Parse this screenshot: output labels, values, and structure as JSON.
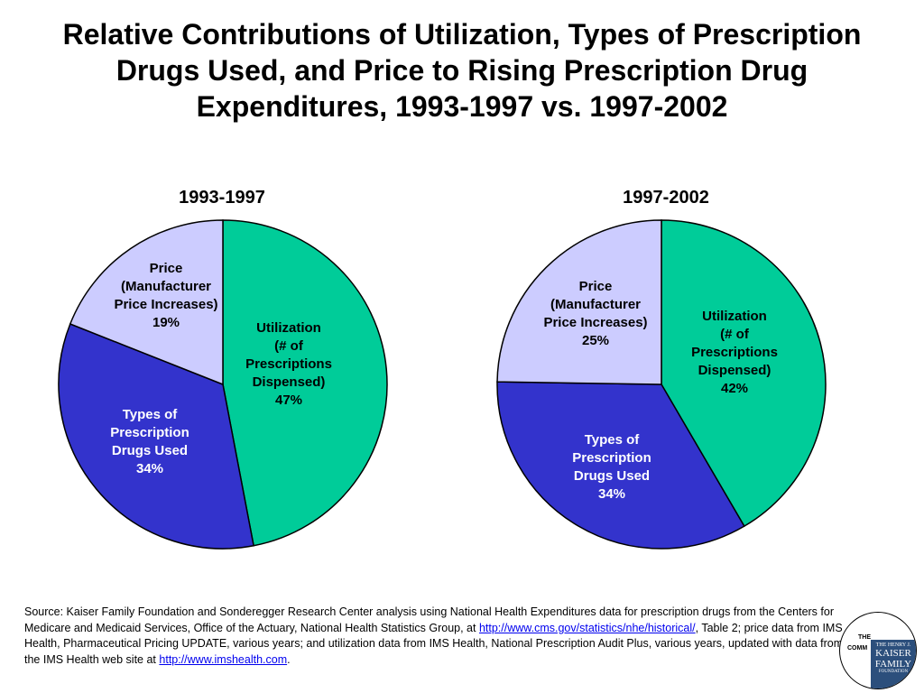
{
  "title": "Relative Contributions of Utilization, Types of Prescription Drugs Used, and Price to Rising Prescription Drug Expenditures, 1993-1997 vs. 1997-2002",
  "colors": {
    "utilization": "#00cc99",
    "types": "#3333cc",
    "price": "#ccccff",
    "border": "#000000"
  },
  "chart_data": [
    {
      "type": "pie",
      "title": "1993-1997",
      "slices": [
        {
          "label": "Utilization\n(# of\nPrescriptions\nDispensed)\n47%",
          "value": 47
        },
        {
          "label": "Types of\nPrescription\nDrugs Used\n34%",
          "value": 34
        },
        {
          "label": "Price\n(Manufacturer\nPrice Increases)\n19%",
          "value": 19
        }
      ]
    },
    {
      "type": "pie",
      "title": "1997-2002",
      "slices": [
        {
          "label": "Utilization\n(# of\nPrescriptions\nDispensed)\n42%",
          "value": 42
        },
        {
          "label": "Types of\nPrescription\nDrugs Used\n34%",
          "value": 34
        },
        {
          "label": "Price\n(Manufacturer\nPrice Increases)\n25%",
          "value": 25
        }
      ]
    }
  ],
  "source": {
    "text1": "Source: Kaiser Family Foundation and Sonderegger Research Center analysis using National Health Expenditures data for prescription drugs from the Centers for Medicare and Medicaid Services, Office of the Actuary, National Health Statistics Group, at ",
    "link1": "http://www.cms.gov/statistics/nhe/historical/",
    "text2": ", Table 2; price data from IMS Health, Pharmaceutical Pricing UPDATE, various years; and utilization data from IMS Health, National Prescription Audit Plus, various years, updated with data from the IMS Health web site at ",
    "link2": "http://www.imshealth.com",
    "text3": "."
  },
  "logo": {
    "the": "THE",
    "comm": "COMM",
    "line1": "THE HENRY J.",
    "line2": "KAISER",
    "line3": "FAMILY",
    "line4": "FOUNDATION"
  }
}
